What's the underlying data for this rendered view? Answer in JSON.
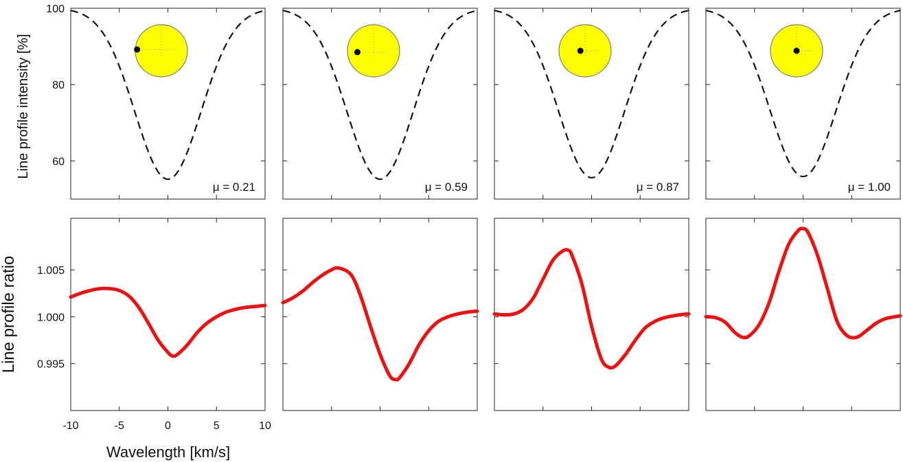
{
  "chart_data": {
    "type": "line",
    "layout": "2 rows x 4 columns",
    "x": {
      "label": "Wavelength [km/s]",
      "range": [
        -10,
        10
      ],
      "ticks": [
        -10,
        -5,
        0,
        5,
        10
      ]
    },
    "top": {
      "ylabel": "Line profile intensity [%]",
      "ylim": [
        50,
        100
      ],
      "ticks": [
        60,
        80,
        100
      ],
      "style": "dashed black",
      "profile": {
        "continuum": 100,
        "curve_depths": [
          44.8,
          44.8,
          44.4,
          44.1
        ],
        "sigma_kms": 3.4
      }
    },
    "bottom": {
      "ylabel": "Line profile ratio",
      "ylim": [
        0.99,
        1.0105
      ],
      "ticks": [
        0.995,
        1.0,
        1.005
      ],
      "tick_labels": [
        "0.995",
        "1.000",
        "1.005"
      ],
      "style": "solid red",
      "color": "#ee1111"
    },
    "panels": [
      {
        "mu_label": "μ = 0.21",
        "star_inset": {
          "planet_x": -0.93,
          "planet_y": -0.05
        },
        "ratio_curve": [
          [
            -10,
            1.0021
          ],
          [
            -9,
            1.0025
          ],
          [
            -8,
            1.0028
          ],
          [
            -7,
            1.003
          ],
          [
            -6,
            1.003
          ],
          [
            -5,
            1.0028
          ],
          [
            -4,
            1.0022
          ],
          [
            -3,
            1.001
          ],
          [
            -2,
            0.9993
          ],
          [
            -1,
            0.9975
          ],
          [
            0,
            0.9962
          ],
          [
            0.5,
            0.9958
          ],
          [
            1,
            0.996
          ],
          [
            2,
            0.997
          ],
          [
            3,
            0.9983
          ],
          [
            4,
            0.9993
          ],
          [
            5,
            1.0
          ],
          [
            6,
            1.0005
          ],
          [
            7,
            1.0008
          ],
          [
            8,
            1.001
          ],
          [
            9,
            1.0011
          ],
          [
            10,
            1.0012
          ]
        ]
      },
      {
        "mu_label": "μ = 0.59",
        "star_inset": {
          "planet_x": -0.62,
          "planet_y": 0.05
        },
        "ratio_curve": [
          [
            -10,
            1.0015
          ],
          [
            -9,
            1.002
          ],
          [
            -8,
            1.0027
          ],
          [
            -7,
            1.0036
          ],
          [
            -6,
            1.0044
          ],
          [
            -5,
            1.005
          ],
          [
            -4.3,
            1.0052
          ],
          [
            -3,
            1.0045
          ],
          [
            -2,
            1.0022
          ],
          [
            -1,
            0.999
          ],
          [
            0,
            0.996
          ],
          [
            1,
            0.9937
          ],
          [
            1.6,
            0.9933
          ],
          [
            2,
            0.9935
          ],
          [
            3,
            0.995
          ],
          [
            4,
            0.997
          ],
          [
            5,
            0.9985
          ],
          [
            6,
            0.9995
          ],
          [
            7,
            1.0
          ],
          [
            8,
            1.0003
          ],
          [
            9,
            1.0005
          ],
          [
            10,
            1.0006
          ]
        ]
      },
      {
        "mu_label": "μ = 0.87",
        "star_inset": {
          "planet_x": -0.18,
          "planet_y": 0.0
        },
        "ratio_curve": [
          [
            -10,
            1.0003
          ],
          [
            -9,
            1.0002
          ],
          [
            -8,
            1.0003
          ],
          [
            -7,
            1.0008
          ],
          [
            -6,
            1.002
          ],
          [
            -5,
            1.004
          ],
          [
            -4,
            1.006
          ],
          [
            -3,
            1.007
          ],
          [
            -2.4,
            1.0071
          ],
          [
            -2,
            1.0065
          ],
          [
            -1,
            1.0035
          ],
          [
            0,
            0.999
          ],
          [
            1,
            0.9955
          ],
          [
            1.8,
            0.9946
          ],
          [
            2.5,
            0.9948
          ],
          [
            3.5,
            0.996
          ],
          [
            4.5,
            0.9975
          ],
          [
            5.5,
            0.9988
          ],
          [
            6.5,
            0.9995
          ],
          [
            7.5,
            0.9999
          ],
          [
            9,
            1.0002
          ],
          [
            10,
            1.0003
          ]
        ]
      },
      {
        "mu_label": "μ = 1.00",
        "star_inset": {
          "planet_x": 0.0,
          "planet_y": 0.0
        },
        "ratio_curve": [
          [
            -10,
            1.0
          ],
          [
            -9,
            0.9999
          ],
          [
            -8,
            0.9994
          ],
          [
            -7,
            0.9983
          ],
          [
            -6.2,
            0.9978
          ],
          [
            -5.5,
            0.998
          ],
          [
            -4.5,
            0.9992
          ],
          [
            -3.5,
            1.0015
          ],
          [
            -2.5,
            1.0048
          ],
          [
            -1.5,
            1.0077
          ],
          [
            -0.5,
            1.0092
          ],
          [
            0,
            1.0094
          ],
          [
            0.5,
            1.009
          ],
          [
            1.5,
            1.0065
          ],
          [
            2.5,
            1.003
          ],
          [
            3.5,
            0.9995
          ],
          [
            4.5,
            0.998
          ],
          [
            5.5,
            0.9978
          ],
          [
            6.5,
            0.9985
          ],
          [
            7.5,
            0.9993
          ],
          [
            8.5,
            0.9998
          ],
          [
            10,
            1.0001
          ]
        ]
      }
    ]
  },
  "colors": {
    "star_fill": "#ffff00",
    "star_stroke": "#7a7a7a",
    "planet": "#000000",
    "ratio_line": "#ee1111",
    "profile_line": "#111111"
  }
}
